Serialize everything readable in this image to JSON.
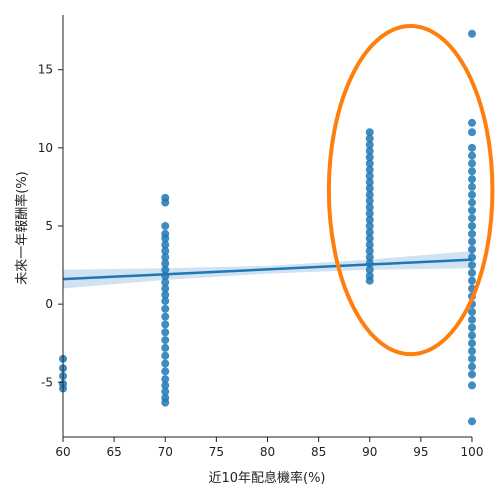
{
  "chart_data": {
    "type": "scatter",
    "xlabel": "近10年配息機率(%)",
    "ylabel": "未來一年報酬率(%)",
    "xlim": [
      60,
      100
    ],
    "ylim": [
      -8.5,
      18.5
    ],
    "x_ticks": [
      "60",
      "65",
      "70",
      "75",
      "80",
      "85",
      "90",
      "95",
      "100"
    ],
    "y_ticks": [
      "-5",
      "0",
      "5",
      "10",
      "15"
    ],
    "grid": false,
    "colors": {
      "points": "#1f77b4",
      "regression_line": "#1f77b4",
      "confidence_band": "#c6dbef",
      "highlight_ellipse": "#ff7f0e",
      "axis": "#222222"
    },
    "regression": {
      "x": [
        60,
        100
      ],
      "y": [
        1.6,
        2.85
      ]
    },
    "confidence_band": {
      "x": [
        60,
        70,
        80,
        90,
        100
      ],
      "lower": [
        1.0,
        1.55,
        1.95,
        2.2,
        2.3
      ],
      "upper": [
        2.2,
        2.3,
        2.45,
        2.85,
        3.4
      ]
    },
    "points": [
      {
        "x": 60,
        "y": -3.5
      },
      {
        "x": 60,
        "y": -4.1
      },
      {
        "x": 60,
        "y": -4.6
      },
      {
        "x": 60,
        "y": -5.1
      },
      {
        "x": 60,
        "y": -5.4
      },
      {
        "x": 70,
        "y": 6.8
      },
      {
        "x": 70,
        "y": 6.5
      },
      {
        "x": 70,
        "y": 5.0
      },
      {
        "x": 70,
        "y": 4.5
      },
      {
        "x": 70,
        "y": 4.2
      },
      {
        "x": 70,
        "y": 3.8
      },
      {
        "x": 70,
        "y": 3.4
      },
      {
        "x": 70,
        "y": 3.0
      },
      {
        "x": 70,
        "y": 2.6
      },
      {
        "x": 70,
        "y": 2.2
      },
      {
        "x": 70,
        "y": 1.8
      },
      {
        "x": 70,
        "y": 1.4
      },
      {
        "x": 70,
        "y": 1.0
      },
      {
        "x": 70,
        "y": 0.6
      },
      {
        "x": 70,
        "y": 0.2
      },
      {
        "x": 70,
        "y": -0.3
      },
      {
        "x": 70,
        "y": -0.8
      },
      {
        "x": 70,
        "y": -1.3
      },
      {
        "x": 70,
        "y": -1.8
      },
      {
        "x": 70,
        "y": -2.3
      },
      {
        "x": 70,
        "y": -2.8
      },
      {
        "x": 70,
        "y": -3.3
      },
      {
        "x": 70,
        "y": -3.8
      },
      {
        "x": 70,
        "y": -4.3
      },
      {
        "x": 70,
        "y": -4.8
      },
      {
        "x": 70,
        "y": -5.2
      },
      {
        "x": 70,
        "y": -5.6
      },
      {
        "x": 70,
        "y": -6.0
      },
      {
        "x": 70,
        "y": -6.3
      },
      {
        "x": 90,
        "y": 11.0
      },
      {
        "x": 90,
        "y": 10.6
      },
      {
        "x": 90,
        "y": 10.2
      },
      {
        "x": 90,
        "y": 9.8
      },
      {
        "x": 90,
        "y": 9.4
      },
      {
        "x": 90,
        "y": 9.0
      },
      {
        "x": 90,
        "y": 8.6
      },
      {
        "x": 90,
        "y": 8.2
      },
      {
        "x": 90,
        "y": 7.8
      },
      {
        "x": 90,
        "y": 7.4
      },
      {
        "x": 90,
        "y": 7.0
      },
      {
        "x": 90,
        "y": 6.6
      },
      {
        "x": 90,
        "y": 6.2
      },
      {
        "x": 90,
        "y": 5.8
      },
      {
        "x": 90,
        "y": 5.4
      },
      {
        "x": 90,
        "y": 5.0
      },
      {
        "x": 90,
        "y": 4.6
      },
      {
        "x": 90,
        "y": 4.2
      },
      {
        "x": 90,
        "y": 3.8
      },
      {
        "x": 90,
        "y": 3.4
      },
      {
        "x": 90,
        "y": 3.0
      },
      {
        "x": 90,
        "y": 2.6
      },
      {
        "x": 90,
        "y": 2.2
      },
      {
        "x": 90,
        "y": 1.8
      },
      {
        "x": 90,
        "y": 1.5
      },
      {
        "x": 100,
        "y": 17.3
      },
      {
        "x": 100,
        "y": 11.6
      },
      {
        "x": 100,
        "y": 11.0
      },
      {
        "x": 100,
        "y": 10.0
      },
      {
        "x": 100,
        "y": 9.5
      },
      {
        "x": 100,
        "y": 9.0
      },
      {
        "x": 100,
        "y": 8.5
      },
      {
        "x": 100,
        "y": 8.0
      },
      {
        "x": 100,
        "y": 7.5
      },
      {
        "x": 100,
        "y": 7.0
      },
      {
        "x": 100,
        "y": 6.5
      },
      {
        "x": 100,
        "y": 6.0
      },
      {
        "x": 100,
        "y": 5.5
      },
      {
        "x": 100,
        "y": 5.0
      },
      {
        "x": 100,
        "y": 4.5
      },
      {
        "x": 100,
        "y": 4.0
      },
      {
        "x": 100,
        "y": 3.5
      },
      {
        "x": 100,
        "y": 3.0
      },
      {
        "x": 100,
        "y": 2.5
      },
      {
        "x": 100,
        "y": 2.0
      },
      {
        "x": 100,
        "y": 1.5
      },
      {
        "x": 100,
        "y": 1.0
      },
      {
        "x": 100,
        "y": 0.5
      },
      {
        "x": 100,
        "y": 0.0
      },
      {
        "x": 100,
        "y": -0.5
      },
      {
        "x": 100,
        "y": -1.0
      },
      {
        "x": 100,
        "y": -1.5
      },
      {
        "x": 100,
        "y": -2.0
      },
      {
        "x": 100,
        "y": -2.5
      },
      {
        "x": 100,
        "y": -3.0
      },
      {
        "x": 100,
        "y": -3.5
      },
      {
        "x": 100,
        "y": -4.0
      },
      {
        "x": 100,
        "y": -4.5
      },
      {
        "x": 100,
        "y": -5.2
      },
      {
        "x": 100,
        "y": -7.5
      }
    ],
    "highlight": {
      "center": [
        94,
        7.3
      ],
      "radius_x": 8,
      "radius_y": 10.5
    }
  }
}
